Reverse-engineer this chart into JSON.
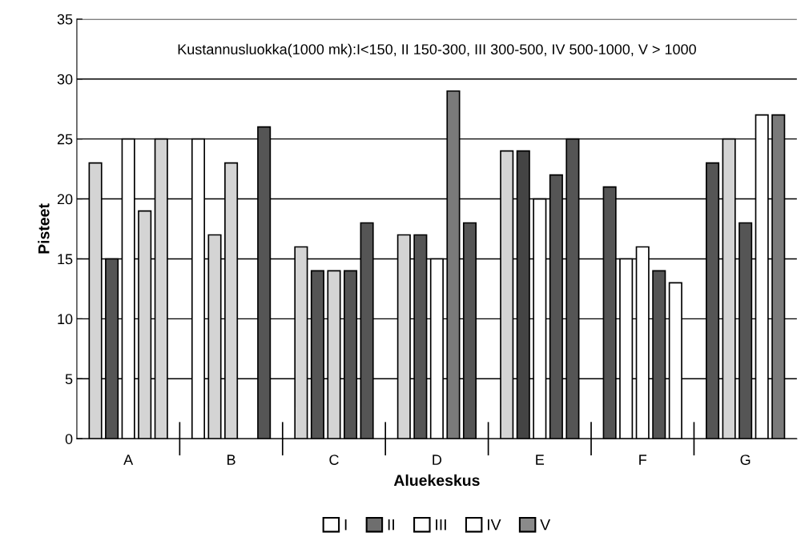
{
  "chart_data": {
    "type": "bar",
    "xlabel": "Aluekeskus",
    "ylabel": "Pisteet",
    "categories": [
      "A",
      "B",
      "C",
      "D",
      "E",
      "F",
      "G"
    ],
    "series": [
      {
        "name": "I",
        "color": "#ffffff",
        "values": [
          23,
          25,
          16,
          17,
          24,
          21,
          23
        ],
        "colors": [
          "#d4d4d4",
          "#ffffff",
          "#d4d4d4",
          "#d4d4d4",
          "#d4d4d4",
          "#555555",
          "#555555"
        ]
      },
      {
        "name": "II",
        "color": "#6e6e6e",
        "values": [
          15,
          17,
          14,
          17,
          24,
          15,
          25
        ],
        "colors": [
          "#555555",
          "#d4d4d4",
          "#555555",
          "#555555",
          "#444444",
          "#ffffff",
          "#d4d4d4"
        ]
      },
      {
        "name": "III",
        "color": "#ffffff",
        "values": [
          25,
          23,
          14,
          15,
          20,
          16,
          18
        ],
        "colors": [
          "#ffffff",
          "#d4d4d4",
          "#d4d4d4",
          "#ffffff",
          "#ffffff",
          "#ffffff",
          "#555555"
        ]
      },
      {
        "name": "IV",
        "color": "#ffffff",
        "values": [
          19,
          null,
          14,
          29,
          22,
          14,
          27
        ],
        "colors": [
          "#d4d4d4",
          "#ffffff",
          "#555555",
          "#7a7a7a",
          "#555555",
          "#555555",
          "#ffffff"
        ]
      },
      {
        "name": "V",
        "color": "#8a8a8a",
        "values": [
          25,
          26,
          18,
          18,
          25,
          13,
          27
        ],
        "colors": [
          "#d4d4d4",
          "#555555",
          "#555555",
          "#555555",
          "#555555",
          "#ffffff",
          "#7a7a7a"
        ]
      }
    ],
    "ylim": [
      0,
      35
    ],
    "yticks": [
      0,
      5,
      10,
      15,
      20,
      25,
      30,
      35
    ],
    "grid": "y",
    "legend": "bottom",
    "annotations": [
      "Kustannusluokka(1000 mk):I<150, II 150-300, III 300-500, IV 500-1000, V > 1000"
    ]
  }
}
